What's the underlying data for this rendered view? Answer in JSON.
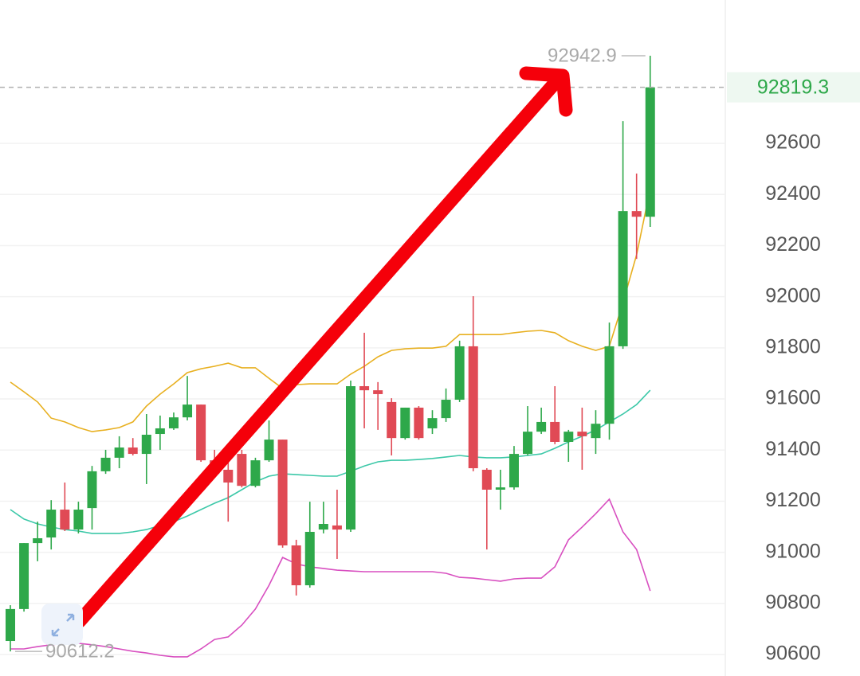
{
  "chart_data": {
    "type": "candlestick",
    "open": [
      90653,
      90778,
      91036,
      91058,
      91167,
      91089,
      91173,
      91317,
      91370,
      91410,
      91385,
      91463,
      91485,
      91528,
      91578,
      91360,
      91323,
      91385,
      91260,
      91360,
      91441,
      91027,
      90871,
      91089,
      91105,
      91089,
      91650,
      91634,
      91588,
      91447,
      91566,
      91485,
      91525,
      91597,
      91806,
      91323,
      91245,
      91254,
      91385,
      91472,
      91510,
      91432,
      91472,
      91447,
      91503,
      91806,
      92335,
      92313
    ],
    "high": [
      90793,
      91036,
      91120,
      91204,
      91273,
      91198,
      91338,
      91401,
      91454,
      91447,
      91541,
      91535,
      91547,
      91690,
      91578,
      91401,
      91385,
      91401,
      91370,
      91516,
      91441,
      91049,
      91198,
      91198,
      91245,
      91672,
      91859,
      91666,
      91603,
      91566,
      91572,
      91556,
      91641,
      91828,
      92002,
      91329,
      91323,
      91416,
      91572,
      91566,
      91650,
      91479,
      91566,
      91556,
      91899,
      92687,
      92482,
      92942.9
    ],
    "low": [
      90612.2,
      90768,
      90965,
      91011,
      91083,
      91074,
      91089,
      91307,
      91329,
      91379,
      91267,
      91401,
      91479,
      91516,
      91354,
      91298,
      91120,
      91254,
      91254,
      91354,
      91018,
      90831,
      90862,
      91074,
      90974,
      91080,
      91485,
      91479,
      91379,
      91441,
      91441,
      91463,
      91510,
      91588,
      91317,
      91011,
      91167,
      91245,
      91379,
      91463,
      91423,
      91354,
      91323,
      91385,
      91441,
      91796,
      92148,
      92273
    ],
    "close": [
      90778,
      91036,
      91055,
      91167,
      91089,
      91167,
      91317,
      91370,
      91410,
      91385,
      91460,
      91485,
      91528,
      91578,
      91360,
      91307,
      91273,
      91260,
      91360,
      91441,
      91027,
      90871,
      91080,
      91111,
      91089,
      91650,
      91634,
      91619,
      91447,
      91566,
      91447,
      91525,
      91597,
      91806,
      91329,
      91245,
      91254,
      91385,
      91472,
      91510,
      91432,
      91472,
      91454,
      91503,
      91806,
      92335,
      92313,
      92819.3
    ],
    "up_color": "#2ea84a",
    "down_color": "#e04a55",
    "lines": [
      {
        "color": "#e8b020",
        "values": [
          91666,
          91628,
          91588,
          91525,
          91510,
          91488,
          91472,
          91479,
          91488,
          91510,
          91572,
          91619,
          91659,
          91703,
          91718,
          91728,
          91740,
          91722,
          91722,
          91681,
          91641,
          91656,
          91659,
          91659,
          91659,
          91697,
          91728,
          91765,
          91790,
          91796,
          91799,
          91799,
          91806,
          91852,
          91852,
          91852,
          91852,
          91859,
          91865,
          91868,
          91859,
          91828,
          91806,
          91790,
          91806,
          91977,
          92164,
          92422
        ]
      },
      {
        "color": "#3cc8a8",
        "values": [
          91167,
          91130,
          91111,
          91099,
          91089,
          91083,
          91074,
          91074,
          91074,
          91080,
          91089,
          91105,
          91120,
          91142,
          91167,
          91192,
          91214,
          91245,
          91276,
          91298,
          91307,
          91304,
          91301,
          91298,
          91298,
          91317,
          91338,
          91354,
          91360,
          91360,
          91363,
          91367,
          91373,
          91379,
          91373,
          91370,
          91370,
          91373,
          91379,
          91385,
          91407,
          91432,
          91454,
          91479,
          91510,
          91541,
          91578,
          91634
        ]
      },
      {
        "color": "#d84fc0",
        "values": [
          90622,
          90622,
          90631,
          90638,
          90644,
          90644,
          90638,
          90631,
          90622,
          90613,
          90606,
          90597,
          90591,
          90591,
          90622,
          90659,
          90669,
          90715,
          90778,
          90871,
          90980,
          90955,
          90943,
          90937,
          90930,
          90927,
          90924,
          90924,
          90924,
          90924,
          90924,
          90924,
          90918,
          90902,
          90899,
          90893,
          90887,
          90896,
          90899,
          90899,
          90943,
          91049,
          91099,
          91151,
          91208,
          91080,
          91011,
          90849
        ]
      }
    ],
    "ylim": [
      90516,
      93161
    ],
    "yticks": [
      90600,
      90800,
      91000,
      91200,
      91400,
      91600,
      91800,
      92000,
      92200,
      92400,
      92600
    ],
    "grid": true
  }
}
